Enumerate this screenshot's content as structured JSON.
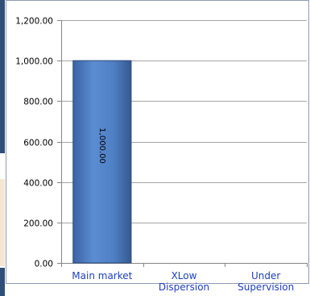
{
  "chart_data": {
    "type": "bar",
    "categories": [
      "Main market",
      "XLow Dispersion",
      "Under Supervision"
    ],
    "category_lines": [
      [
        "Main market"
      ],
      [
        "XLow",
        "Dispersion"
      ],
      [
        "Under",
        "Supervision"
      ]
    ],
    "values": [
      1000.0,
      0,
      0
    ],
    "data_labels": [
      "1,000.00",
      "",
      ""
    ],
    "ylim": [
      0,
      1200
    ],
    "yticks": [
      0,
      200,
      400,
      600,
      800,
      1000,
      1200
    ],
    "ytick_labels": [
      "0.00",
      "200.00",
      "400.00",
      "600.00",
      "800.00",
      "1,000.00",
      "1,200.00"
    ],
    "title": "",
    "xlabel": "",
    "ylabel": "",
    "grid": true,
    "colors": {
      "bar": "#4f7fc4",
      "bar_edge": "#2b4a7a",
      "grid": "#a6a6a6",
      "category_text": "#1f3fbf"
    }
  }
}
